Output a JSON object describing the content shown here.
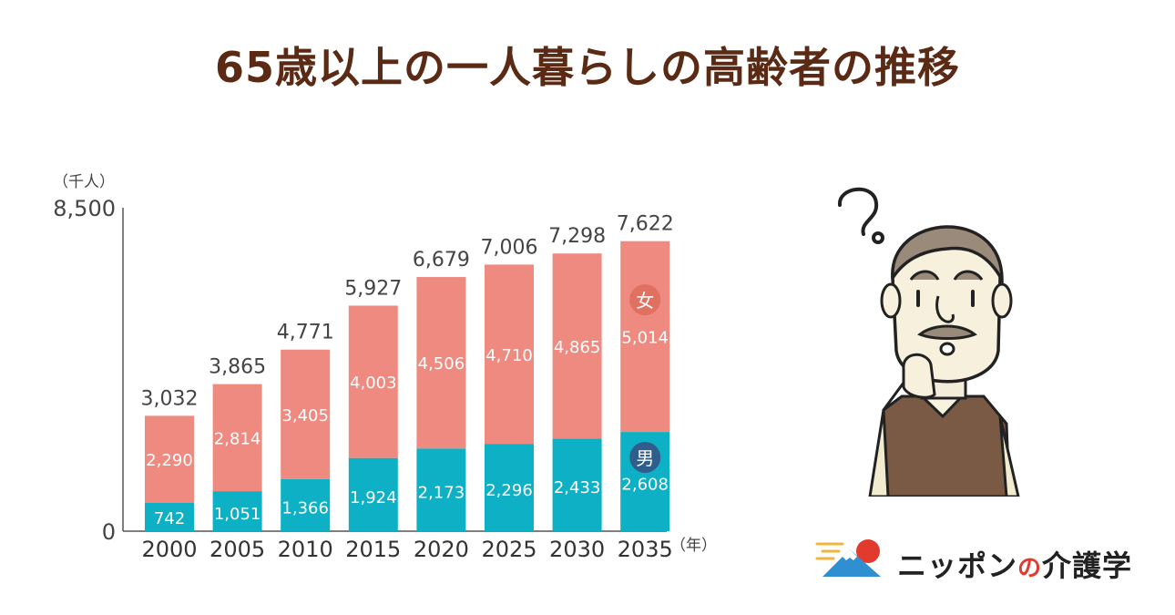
{
  "title": "65歳以上の一人暮らしの高齢者の推移",
  "brand": {
    "name_part1": "ニッポン",
    "name_part2": "の",
    "name_part3": "介護学"
  },
  "chart_data": {
    "type": "bar",
    "stacked": true,
    "unit_label": "（千人）",
    "x_unit_label": "（年）",
    "categories": [
      "2000",
      "2005",
      "2010",
      "2015",
      "2020",
      "2025",
      "2030",
      "2035"
    ],
    "series": [
      {
        "name": "男",
        "values": [
          742,
          1051,
          1366,
          1924,
          2173,
          2296,
          2433,
          2608
        ],
        "color": "#0db0c4"
      },
      {
        "name": "女",
        "values": [
          2290,
          2814,
          3405,
          4003,
          4506,
          4710,
          4865,
          5014
        ],
        "color": "#ee8a80"
      }
    ],
    "totals": [
      3032,
      3865,
      4771,
      5927,
      6679,
      7006,
      7298,
      7622
    ],
    "totals_labels": [
      "3,032",
      "3,865",
      "4,771",
      "5,927",
      "6,679",
      "7,006",
      "7,298",
      "7,622"
    ],
    "male_labels": [
      "742",
      "1,051",
      "1,366",
      "1,924",
      "2,173",
      "2,296",
      "2,433",
      "2,608"
    ],
    "female_labels": [
      "2,290",
      "2,814",
      "3,405",
      "4,003",
      "4,506",
      "4,710",
      "4,865",
      "5,014"
    ],
    "ylim": [
      0,
      8500
    ],
    "y_tick_labels": [
      "0",
      "8,500"
    ],
    "legend_female": "女",
    "legend_male": "男",
    "legend_female_color": "#e07060",
    "legend_male_color": "#2f5e8c",
    "grid": false
  }
}
